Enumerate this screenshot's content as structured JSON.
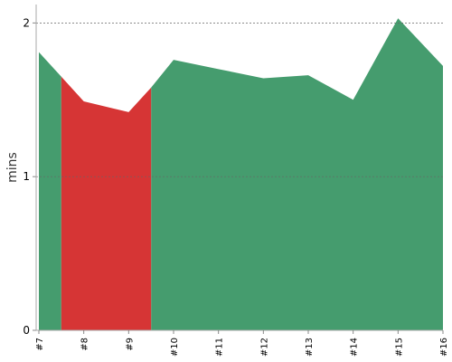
{
  "chart_data": {
    "type": "area",
    "ylabel": "mins",
    "x": [
      7,
      7.5,
      8,
      9,
      9.5,
      10,
      11,
      12,
      13,
      14,
      15,
      16
    ],
    "series": [
      {
        "color": "#459c6e",
        "values": [
          1.81,
          1.65,
          null,
          null,
          1.58,
          1.76,
          1.7,
          1.64,
          1.66,
          1.5,
          2.03,
          1.72
        ]
      },
      {
        "color": "#d63535",
        "values": [
          null,
          1.65,
          1.49,
          1.42,
          1.58,
          null,
          null,
          null,
          null,
          null,
          null,
          null
        ]
      }
    ],
    "xlim": [
      7,
      16
    ],
    "xticks": [
      {
        "value": 7,
        "label": "#7"
      },
      {
        "value": 8,
        "label": "#8"
      },
      {
        "value": 9,
        "label": "#9"
      },
      {
        "value": 10,
        "label": "#10"
      },
      {
        "value": 11,
        "label": "#11"
      },
      {
        "value": 12,
        "label": "#12"
      },
      {
        "value": 13,
        "label": "#13"
      },
      {
        "value": 14,
        "label": "#14"
      },
      {
        "value": 15,
        "label": "#15"
      },
      {
        "value": 16,
        "label": "#16"
      }
    ],
    "ylim": [
      0,
      2.12
    ],
    "yticks": [
      0,
      1,
      2
    ],
    "grid": true
  }
}
